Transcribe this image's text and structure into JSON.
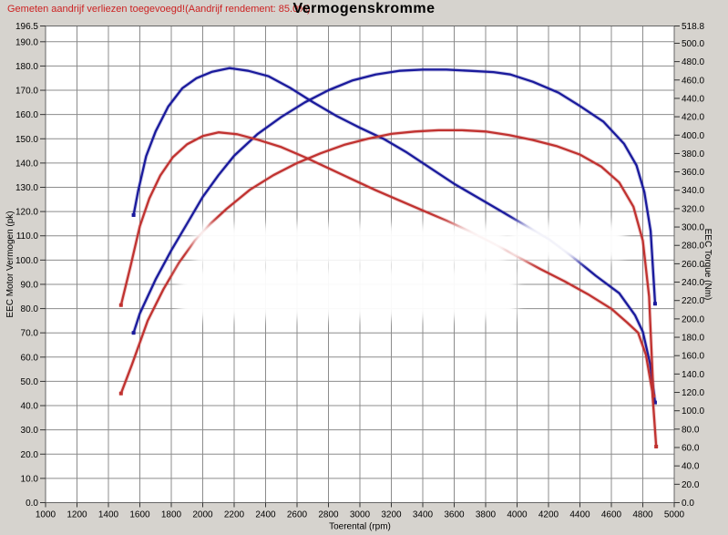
{
  "header": {
    "annotation": "Gemeten aandrijf verliezen toegevoegd!(Aandrijf rendement: 85.0%)",
    "title": "Vermogenskromme"
  },
  "colors": {
    "background": "#d6d3ce",
    "plot_background": "#ffffff",
    "grid": "#8c8c8c",
    "frame": "#666666",
    "annotation_red": "#cc2222",
    "series_blue": "#1a1a9c",
    "series_red": "#c03230"
  },
  "chart_data": {
    "type": "line",
    "title": "Vermogenskromme",
    "xlabel": "Toerental (rpm)",
    "ylabel_left": "EEC Motor Vermogen (pk)",
    "ylabel_right": "EEC Torque (Nm)",
    "grid": true,
    "legend": "none",
    "x_range": [
      1000,
      5000
    ],
    "x_ticks": [
      1000,
      1200,
      1400,
      1600,
      1800,
      2000,
      2200,
      2400,
      2600,
      2800,
      3000,
      3200,
      3400,
      3600,
      3800,
      4000,
      4200,
      4400,
      4600,
      4800,
      5000
    ],
    "y_left_range": [
      0,
      196.5
    ],
    "y_left_ticks": [
      0,
      10,
      20,
      30,
      40,
      50,
      60,
      70,
      80,
      90,
      100,
      110,
      120,
      130,
      140,
      150,
      160,
      170,
      180,
      190,
      196.5
    ],
    "y_right_range": [
      0,
      518.8
    ],
    "y_right_ticks": [
      0,
      20,
      40,
      60,
      80,
      100,
      120,
      140,
      160,
      180,
      200,
      220,
      240,
      260,
      280,
      300,
      320,
      340,
      360,
      380,
      400,
      420,
      440,
      460,
      480,
      500,
      518.8
    ],
    "series": [
      {
        "name": "torque-blue",
        "axis": "right",
        "color": "#1a1a9c",
        "points": [
          [
            1560,
            313
          ],
          [
            1590,
            340
          ],
          [
            1640,
            377
          ],
          [
            1700,
            404
          ],
          [
            1780,
            431
          ],
          [
            1870,
            451
          ],
          [
            1960,
            462
          ],
          [
            2060,
            469
          ],
          [
            2170,
            473
          ],
          [
            2290,
            470
          ],
          [
            2420,
            464
          ],
          [
            2560,
            451
          ],
          [
            2700,
            436
          ],
          [
            2850,
            421
          ],
          [
            3000,
            408
          ],
          [
            3150,
            396
          ],
          [
            3300,
            381
          ],
          [
            3450,
            364
          ],
          [
            3600,
            347
          ],
          [
            3750,
            332
          ],
          [
            3900,
            317
          ],
          [
            4050,
            302
          ],
          [
            4200,
            287
          ],
          [
            4350,
            268
          ],
          [
            4500,
            247
          ],
          [
            4650,
            228
          ],
          [
            4750,
            204
          ],
          [
            4800,
            186
          ],
          [
            4845,
            152
          ],
          [
            4878,
            109
          ]
        ]
      },
      {
        "name": "power-blue",
        "axis": "left",
        "color": "#1a1a9c",
        "points": [
          [
            1560,
            70
          ],
          [
            1600,
            78
          ],
          [
            1700,
            92
          ],
          [
            1800,
            104
          ],
          [
            1900,
            115
          ],
          [
            2000,
            126
          ],
          [
            2100,
            135
          ],
          [
            2200,
            143
          ],
          [
            2350,
            152
          ],
          [
            2500,
            159
          ],
          [
            2650,
            165
          ],
          [
            2800,
            170
          ],
          [
            2950,
            174
          ],
          [
            3100,
            176.5
          ],
          [
            3250,
            178
          ],
          [
            3400,
            178.5
          ],
          [
            3550,
            178.5
          ],
          [
            3700,
            178
          ],
          [
            3850,
            177.5
          ],
          [
            3957,
            176.5
          ],
          [
            4100,
            173.5
          ],
          [
            4264,
            169
          ],
          [
            4400,
            163.5
          ],
          [
            4550,
            157
          ],
          [
            4680,
            148
          ],
          [
            4760,
            139
          ],
          [
            4810,
            128
          ],
          [
            4850,
            112
          ],
          [
            4878,
            82
          ]
        ]
      },
      {
        "name": "torque-red",
        "axis": "right",
        "color": "#c03230",
        "points": [
          [
            1480,
            215
          ],
          [
            1540,
            257
          ],
          [
            1600,
            301
          ],
          [
            1660,
            331
          ],
          [
            1730,
            356
          ],
          [
            1810,
            376
          ],
          [
            1900,
            390
          ],
          [
            2000,
            399
          ],
          [
            2100,
            403
          ],
          [
            2220,
            401
          ],
          [
            2350,
            395
          ],
          [
            2500,
            387
          ],
          [
            2650,
            376
          ],
          [
            2800,
            364
          ],
          [
            2950,
            352
          ],
          [
            3100,
            340
          ],
          [
            3250,
            329
          ],
          [
            3400,
            318
          ],
          [
            3550,
            307
          ],
          [
            3700,
            295
          ],
          [
            3850,
            282
          ],
          [
            4000,
            268
          ],
          [
            4150,
            254
          ],
          [
            4300,
            241
          ],
          [
            4450,
            227
          ],
          [
            4600,
            211
          ],
          [
            4700,
            196
          ],
          [
            4770,
            185
          ],
          [
            4820,
            161
          ],
          [
            4860,
            121
          ],
          [
            4885,
            61
          ]
        ]
      },
      {
        "name": "power-red",
        "axis": "left",
        "color": "#c03230",
        "points": [
          [
            1480,
            45
          ],
          [
            1550,
            57
          ],
          [
            1650,
            75
          ],
          [
            1750,
            88
          ],
          [
            1850,
            99
          ],
          [
            1950,
            108
          ],
          [
            2050,
            115
          ],
          [
            2150,
            121
          ],
          [
            2300,
            129
          ],
          [
            2450,
            135
          ],
          [
            2600,
            140
          ],
          [
            2750,
            144
          ],
          [
            2900,
            147.5
          ],
          [
            3050,
            150
          ],
          [
            3200,
            152
          ],
          [
            3350,
            153
          ],
          [
            3500,
            153.5
          ],
          [
            3650,
            153.5
          ],
          [
            3800,
            153
          ],
          [
            3950,
            151.5
          ],
          [
            4100,
            149.5
          ],
          [
            4250,
            147
          ],
          [
            4400,
            143.5
          ],
          [
            4536,
            138.5
          ],
          [
            4650,
            132
          ],
          [
            4740,
            122
          ],
          [
            4800,
            108
          ],
          [
            4840,
            85
          ],
          [
            4868,
            44
          ]
        ]
      }
    ]
  }
}
